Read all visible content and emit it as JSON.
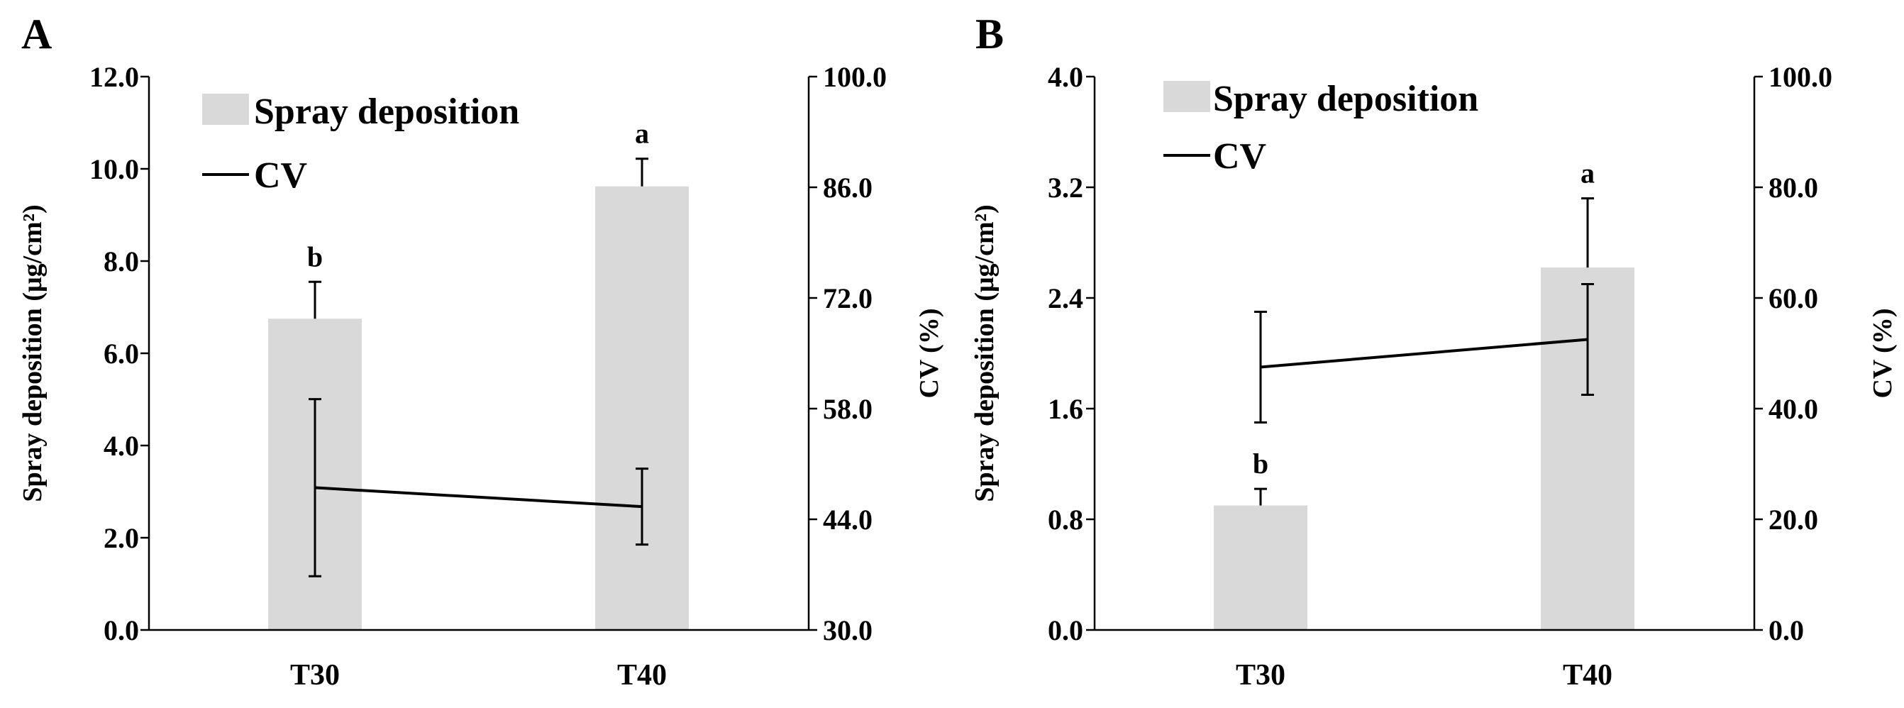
{
  "chart_data": [
    {
      "type": "bar",
      "panel_label": "A",
      "categories": [
        "T30",
        "T40"
      ],
      "series": [
        {
          "name": "Spray deposition",
          "kind": "bar",
          "axis": "left",
          "values": [
            6.75,
            9.62
          ],
          "errors": [
            0.8,
            0.6
          ],
          "color": "#d9d9d9"
        },
        {
          "name": "CV",
          "kind": "line",
          "axis": "right",
          "values": [
            48.0,
            45.6
          ],
          "errors": [
            11.2,
            4.8
          ],
          "color": "#000000"
        }
      ],
      "significance": [
        "b",
        "a"
      ],
      "ylabel": "Spray deposition (μg/cm²)",
      "y2label": "CV (%)",
      "ylim": [
        0,
        12
      ],
      "yticks": [
        "0.0",
        "2.0",
        "4.0",
        "6.0",
        "8.0",
        "10.0",
        "12.0"
      ],
      "y2lim": [
        30,
        100
      ],
      "y2ticks": [
        "30.0",
        "44.0",
        "58.0",
        "72.0",
        "86.0",
        "100.0"
      ],
      "legend": [
        "Spray deposition",
        "CV"
      ],
      "legend_position": "top-left"
    },
    {
      "type": "bar",
      "panel_label": "B",
      "categories": [
        "T30",
        "T40"
      ],
      "series": [
        {
          "name": "Spray deposition",
          "kind": "bar",
          "axis": "left",
          "values": [
            0.9,
            2.62
          ],
          "errors": [
            0.12,
            0.5
          ],
          "color": "#d9d9d9"
        },
        {
          "name": "CV",
          "kind": "line",
          "axis": "right",
          "values": [
            47.5,
            52.5
          ],
          "errors": [
            10.0,
            10.0
          ],
          "color": "#000000"
        }
      ],
      "significance": [
        "b",
        "a"
      ],
      "ylabel": "Spray deposition (μg/cm²)",
      "y2label": "CV (%)",
      "ylim": [
        0,
        4
      ],
      "yticks": [
        "0.0",
        "0.8",
        "1.6",
        "2.4",
        "3.2",
        "4.0"
      ],
      "y2lim": [
        0,
        100
      ],
      "y2ticks": [
        "0.0",
        "20.0",
        "40.0",
        "60.0",
        "80.0",
        "100.0"
      ],
      "legend": [
        "Spray deposition",
        "CV"
      ],
      "legend_position": "top-left"
    }
  ]
}
